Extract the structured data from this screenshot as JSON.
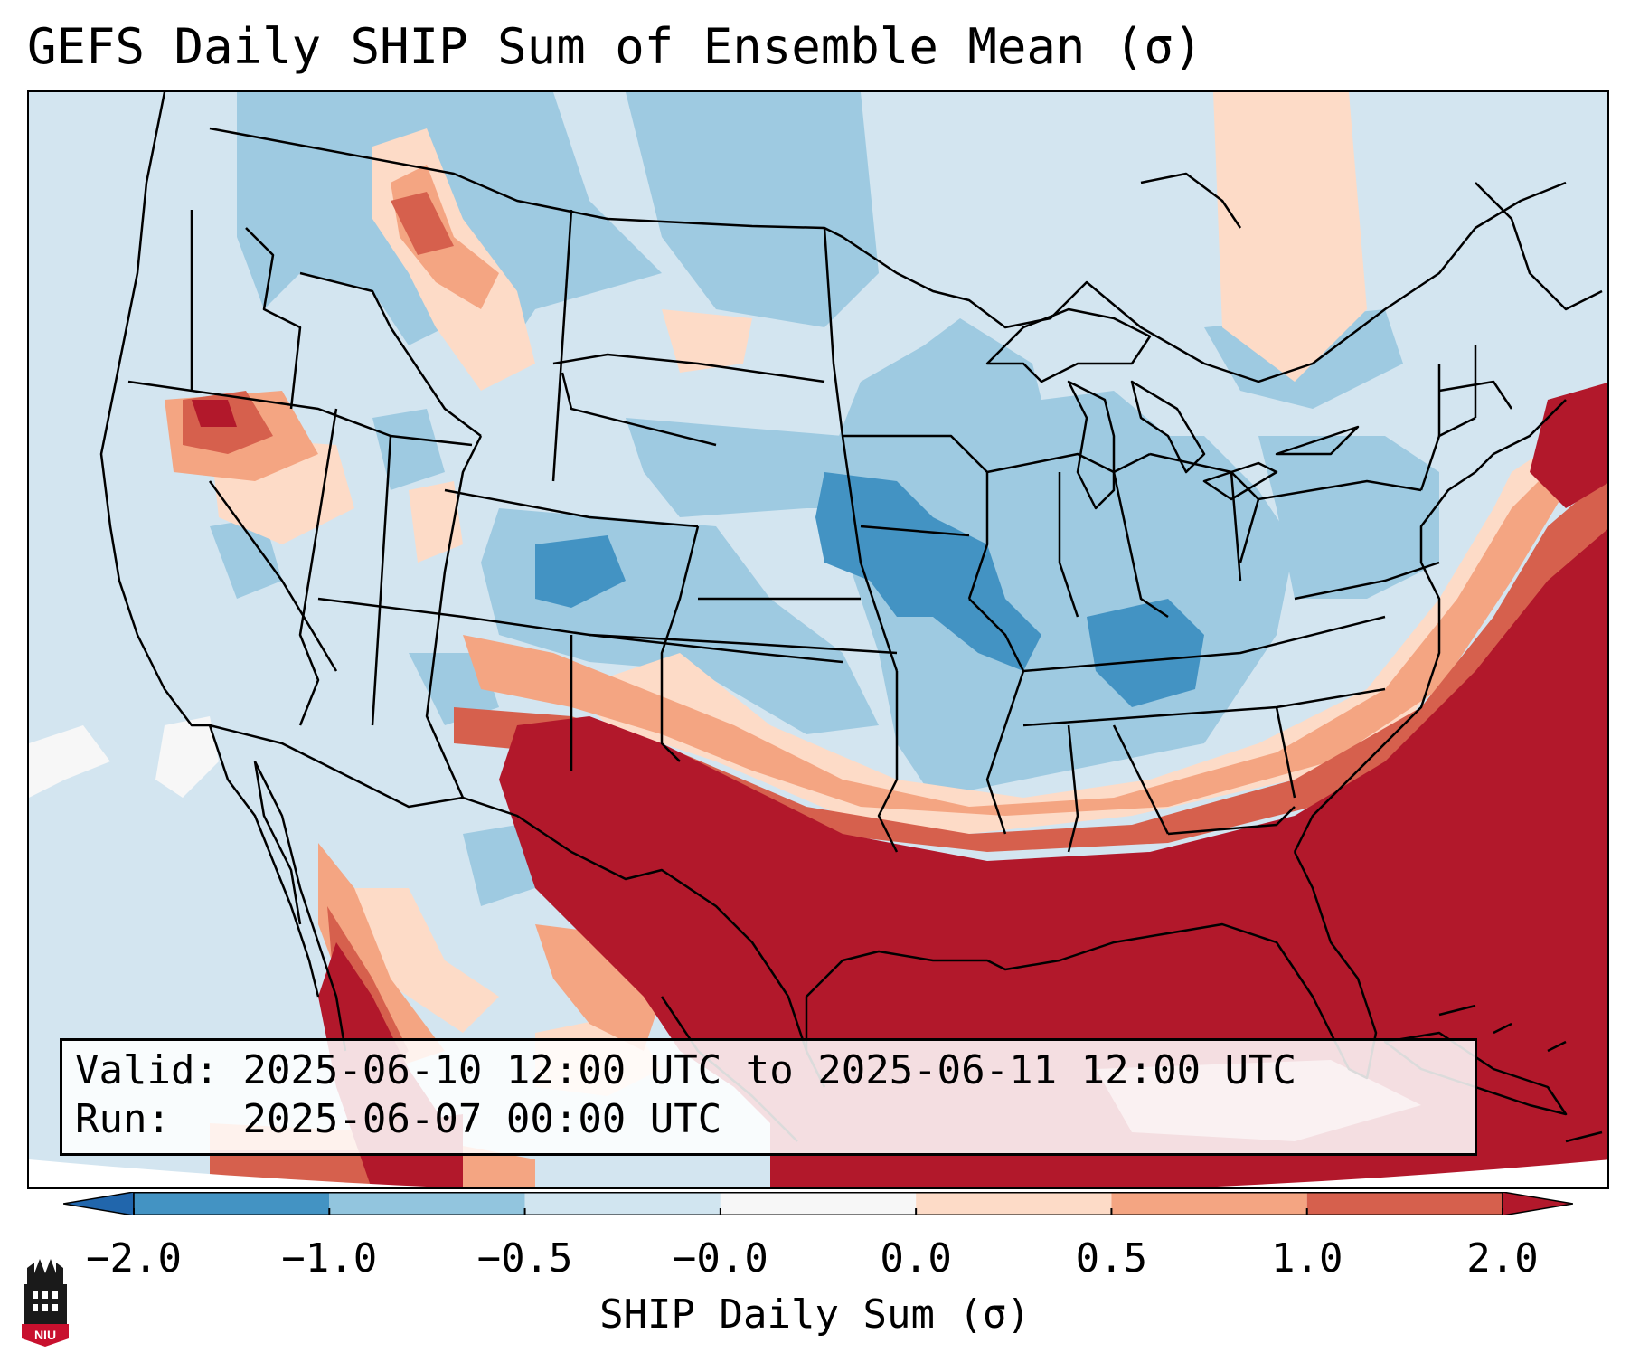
{
  "title": "GEFS Daily SHIP Sum of Ensemble Mean (σ)",
  "info": {
    "valid_label": "Valid:",
    "valid_value": "2025-06-10 12:00 UTC to 2025-06-11 12:00 UTC",
    "run_label": "Run:",
    "run_value": "2025-06-07 00:00 UTC"
  },
  "colorbar": {
    "label": "SHIP Daily Sum (σ)",
    "ticks": [
      "−2.0",
      "−1.0",
      "−0.5",
      "−0.0",
      "0.0",
      "0.5",
      "1.0",
      "2.0"
    ],
    "colors": [
      "#4393c3",
      "#92c5de",
      "#d1e5f0",
      "#f7f7f7",
      "#fddbc7",
      "#f4a582",
      "#d6604d",
      "#b2182b"
    ],
    "extend_low_color": "#2166ac",
    "extend_high_color": "#b2182b"
  },
  "logo": {
    "text": "NIU",
    "colors": {
      "shield": "#c8102e",
      "building": "#1a1a1a"
    }
  },
  "map": {
    "region": "Continental United States",
    "anomaly_colors": {
      "strong_negative": "#4393c3",
      "moderate_negative": "#92c5de",
      "weak_negative": "#d1e5f0",
      "weak_positive": "#fddbc7",
      "moderate_positive": "#f4a582",
      "high_positive": "#d6604d",
      "very_high_positive": "#b2182b"
    }
  }
}
